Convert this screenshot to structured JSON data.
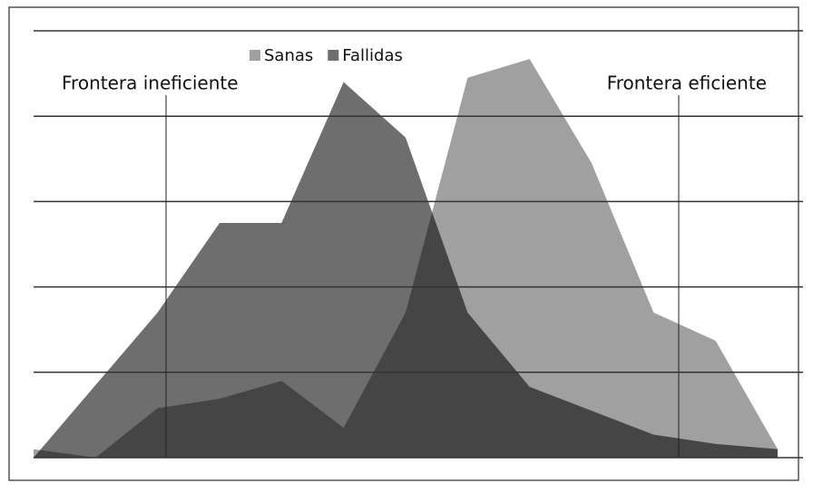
{
  "chart_data": {
    "type": "area",
    "categories": [
      null,
      null,
      null,
      null,
      null,
      null,
      null,
      null,
      null,
      null,
      null,
      null,
      null
    ],
    "series": [
      {
        "name": "Sanas",
        "color": "#a0a0a0",
        "values": [
          0.1,
          0,
          0.58,
          0.69,
          0.9,
          0.35,
          1.7,
          4.45,
          4.67,
          3.45,
          1.7,
          1.37,
          0.1
        ]
      },
      {
        "name": "Fallidas",
        "color": "#6e6e6e",
        "values": [
          0,
          0.85,
          1.7,
          2.75,
          2.75,
          4.4,
          3.75,
          1.7,
          0.83,
          0.55,
          0.27,
          0.16,
          0.1
        ]
      }
    ],
    "ylim": [
      0,
      5
    ],
    "yticks": [
      0,
      1,
      2,
      3,
      4,
      5
    ],
    "grid": true,
    "annotations": [
      "Frontera ineficiente",
      "Frontera eficiente"
    ]
  }
}
